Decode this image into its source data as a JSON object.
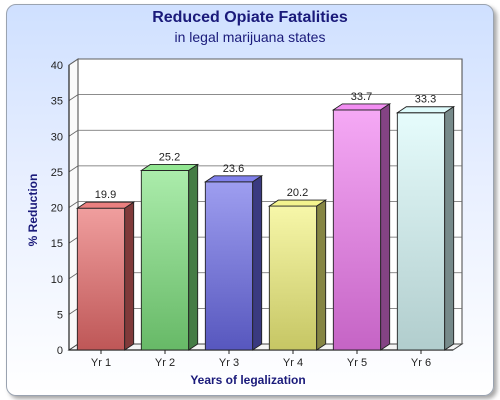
{
  "chart_data": {
    "type": "bar",
    "title": "Reduced Opiate Fatalities",
    "subtitle": "in legal marijuana states",
    "xlabel": "Years of legalization",
    "ylabel": "% Reduction",
    "ylim": [
      0,
      40
    ],
    "yticks": [
      "0",
      "5",
      "10",
      "15",
      "20",
      "25",
      "30",
      "35",
      "40"
    ],
    "categories": [
      "Yr 1",
      "Yr 2",
      "Yr 3",
      "Yr 4",
      "Yr 5",
      "Yr 6"
    ],
    "values": [
      19.9,
      25.2,
      23.6,
      20.2,
      33.7,
      33.3
    ],
    "labels": [
      "19.9",
      "25.2",
      "23.6",
      "20.2",
      "33.7",
      "33.3"
    ],
    "colors": [
      "#e86a6a",
      "#7ee27e",
      "#6a6ae8",
      "#f2f27a",
      "#f07af0",
      "#d8fafa"
    ],
    "grid": true,
    "legend": "none"
  }
}
